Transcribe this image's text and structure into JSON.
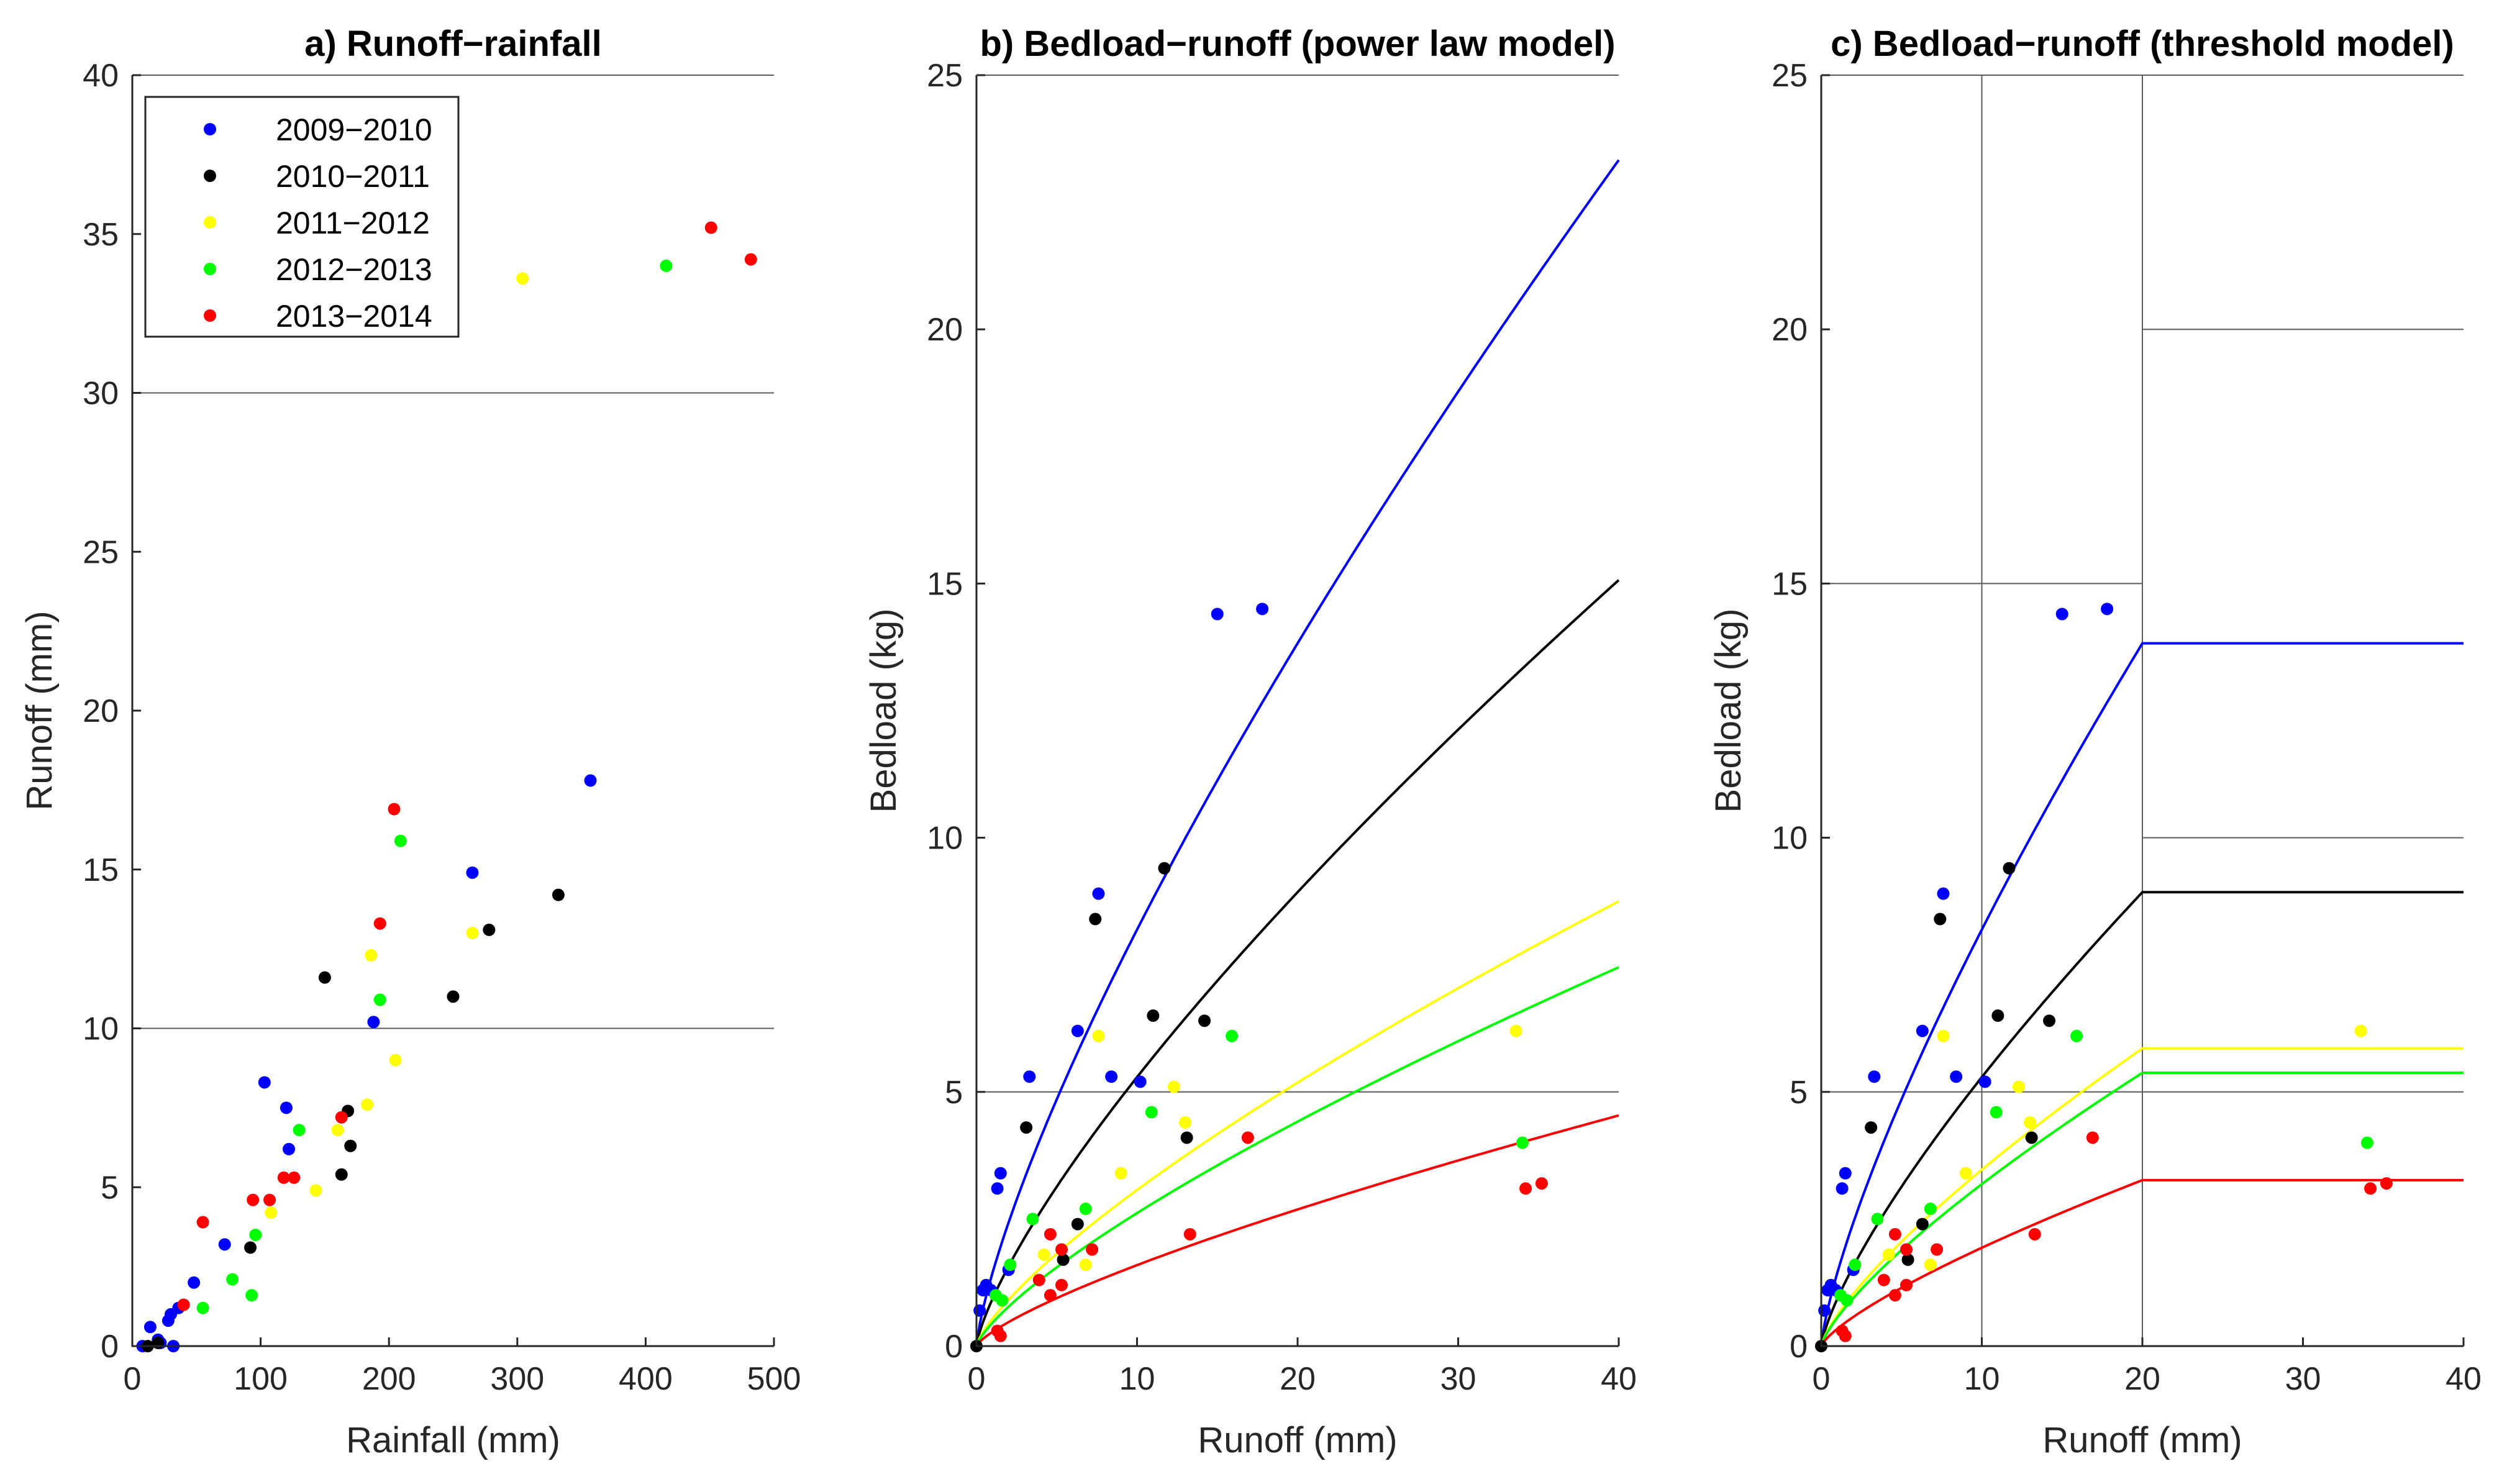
{
  "chart_data": [
    {
      "id": "a",
      "type": "scatter",
      "title": "a) Runoff−rainfall",
      "xlabel": "Rainfall (mm)",
      "ylabel": "Runoff (mm)",
      "xlim": [
        0,
        500
      ],
      "ylim": [
        0,
        40
      ],
      "xticks": [
        0,
        100,
        200,
        300,
        400,
        500
      ],
      "yticks": [
        0,
        5,
        10,
        15,
        20,
        25,
        30,
        35,
        40
      ],
      "hlines": [
        10,
        30,
        40
      ],
      "vlines": [],
      "segments": [],
      "legend": {
        "location": "top-left",
        "entries": [
          "2009−2010",
          "2010−2011",
          "2011−2012",
          "2012−2013",
          "2013−2014"
        ]
      },
      "series": [
        {
          "name": "2009−2010",
          "color": "#0000ff",
          "points": [
            [
              8,
              0
            ],
            [
              14,
              0.6
            ],
            [
              20,
              0.2
            ],
            [
              22,
              0.1
            ],
            [
              28,
              0.8
            ],
            [
              30,
              1.0
            ],
            [
              32,
              0
            ],
            [
              36,
              1.2
            ],
            [
              48,
              2.0
            ],
            [
              72,
              3.2
            ],
            [
              103,
              8.3
            ],
            [
              120,
              7.5
            ],
            [
              122,
              6.2
            ],
            [
              188,
              10.2
            ],
            [
              265,
              14.9
            ],
            [
              357,
              17.8
            ]
          ]
        },
        {
          "name": "2010−2011",
          "color": "#000000",
          "points": [
            [
              12,
              0
            ],
            [
              20,
              0.1
            ],
            [
              92,
              3.1
            ],
            [
              150,
              11.6
            ],
            [
              163,
              5.4
            ],
            [
              168,
              7.4
            ],
            [
              170,
              6.3
            ],
            [
              250,
              11.0
            ],
            [
              278,
              13.1
            ],
            [
              332,
              14.2
            ]
          ]
        },
        {
          "name": "2011−2012",
          "color": "#ffff00",
          "points": [
            [
              108,
              4.2
            ],
            [
              143,
              4.9
            ],
            [
              160,
              6.8
            ],
            [
              183,
              7.6
            ],
            [
              186,
              12.3
            ],
            [
              205,
              9.0
            ],
            [
              265,
              13.0
            ],
            [
              304,
              33.6
            ]
          ]
        },
        {
          "name": "2012−2013",
          "color": "#00ff00",
          "points": [
            [
              55,
              1.2
            ],
            [
              78,
              2.1
            ],
            [
              93,
              1.6
            ],
            [
              96,
              3.5
            ],
            [
              130,
              6.8
            ],
            [
              193,
              10.9
            ],
            [
              209,
              15.9
            ],
            [
              416,
              34.0
            ]
          ]
        },
        {
          "name": "2013−2014",
          "color": "#ff0000",
          "points": [
            [
              40,
              1.3
            ],
            [
              55,
              3.9
            ],
            [
              94,
              4.6
            ],
            [
              107,
              4.6
            ],
            [
              118,
              5.3
            ],
            [
              126,
              5.3
            ],
            [
              163,
              7.2
            ],
            [
              193,
              13.3
            ],
            [
              204,
              16.9
            ],
            [
              451,
              35.2
            ],
            [
              482,
              34.2
            ]
          ]
        }
      ]
    },
    {
      "id": "b",
      "type": "scatter",
      "title": "b) Bedload−runoff (power law model)",
      "xlabel": "Runoff (mm)",
      "ylabel": "Bedload (kg)",
      "xlim": [
        0,
        40
      ],
      "ylim": [
        0,
        25
      ],
      "xticks": [
        0,
        10,
        20,
        30,
        40
      ],
      "yticks": [
        0,
        5,
        10,
        15,
        20,
        25
      ],
      "hlines": [
        5,
        25
      ],
      "vlines": [],
      "segments": [],
      "fit_model": "power law",
      "series": [
        {
          "name": "2009−2010",
          "color": "#0000ff",
          "fit": {
            "a": 1.44,
            "b": 0.755
          },
          "points": [
            [
              0.2,
              0.7
            ],
            [
              0.4,
              1.1
            ],
            [
              0.6,
              1.2
            ],
            [
              0.9,
              1.1
            ],
            [
              1.3,
              3.1
            ],
            [
              1.5,
              3.4
            ],
            [
              2.0,
              1.5
            ],
            [
              3.3,
              5.3
            ],
            [
              6.3,
              6.2
            ],
            [
              7.6,
              8.9
            ],
            [
              8.4,
              5.3
            ],
            [
              10.2,
              5.2
            ],
            [
              15.0,
              14.4
            ],
            [
              17.8,
              14.5
            ]
          ]
        },
        {
          "name": "2010−2011",
          "color": "#000000",
          "fit": {
            "a": 0.93,
            "b": 0.755
          },
          "points": [
            [
              0.0,
              0.0
            ],
            [
              3.1,
              4.3
            ],
            [
              5.4,
              1.7
            ],
            [
              6.3,
              2.4
            ],
            [
              7.4,
              8.4
            ],
            [
              11.0,
              6.5
            ],
            [
              11.7,
              9.4
            ],
            [
              13.1,
              4.1
            ],
            [
              14.2,
              6.4
            ]
          ]
        },
        {
          "name": "2011−2012",
          "color": "#ffff00",
          "fit": {
            "a": 0.54,
            "b": 0.755
          },
          "points": [
            [
              4.2,
              1.8
            ],
            [
              6.8,
              1.6
            ],
            [
              7.6,
              6.1
            ],
            [
              9.0,
              3.4
            ],
            [
              12.3,
              5.1
            ],
            [
              13.0,
              4.4
            ],
            [
              33.6,
              6.2
            ]
          ]
        },
        {
          "name": "2012−2013",
          "color": "#00ff00",
          "fit": {
            "a": 0.46,
            "b": 0.755
          },
          "points": [
            [
              1.2,
              1.0
            ],
            [
              1.6,
              0.9
            ],
            [
              2.1,
              1.6
            ],
            [
              3.5,
              2.5
            ],
            [
              6.8,
              2.7
            ],
            [
              10.9,
              4.6
            ],
            [
              15.9,
              6.1
            ],
            [
              34.0,
              4.0
            ]
          ]
        },
        {
          "name": "2013−2014",
          "color": "#ff0000",
          "fit": {
            "a": 0.28,
            "b": 0.755
          },
          "points": [
            [
              1.3,
              0.3
            ],
            [
              1.5,
              0.2
            ],
            [
              3.9,
              1.3
            ],
            [
              4.6,
              1.0
            ],
            [
              4.6,
              2.2
            ],
            [
              5.3,
              1.2
            ],
            [
              5.3,
              1.9
            ],
            [
              7.2,
              1.9
            ],
            [
              13.3,
              2.2
            ],
            [
              16.9,
              4.1
            ],
            [
              34.2,
              3.1
            ],
            [
              35.2,
              3.2
            ]
          ]
        }
      ]
    },
    {
      "id": "c",
      "type": "scatter",
      "title": "c) Bedload−runoff (threshold model)",
      "xlabel": "Runoff (mm)",
      "ylabel": "Bedload (kg)",
      "xlim": [
        0,
        40
      ],
      "ylim": [
        0,
        25
      ],
      "xticks": [
        0,
        10,
        20,
        30,
        40
      ],
      "yticks": [
        0,
        5,
        10,
        15,
        20,
        25
      ],
      "hlines": [
        5,
        25
      ],
      "vlines": [
        10,
        20
      ],
      "segments": [
        [
          0,
          15,
          20,
          15
        ],
        [
          20,
          20,
          40,
          20
        ],
        [
          20,
          10,
          40,
          10
        ]
      ],
      "fit_model": "threshold",
      "threshold": 20,
      "series": [
        {
          "name": "2009−2010",
          "color": "#0000ff",
          "fit": {
            "a": 1.44,
            "b": 0.755
          },
          "points": [
            [
              0.2,
              0.7
            ],
            [
              0.4,
              1.1
            ],
            [
              0.6,
              1.2
            ],
            [
              0.9,
              1.1
            ],
            [
              1.3,
              3.1
            ],
            [
              1.5,
              3.4
            ],
            [
              2.0,
              1.5
            ],
            [
              3.3,
              5.3
            ],
            [
              6.3,
              6.2
            ],
            [
              7.6,
              8.9
            ],
            [
              8.4,
              5.3
            ],
            [
              10.2,
              5.2
            ],
            [
              15.0,
              14.4
            ],
            [
              17.8,
              14.5
            ]
          ]
        },
        {
          "name": "2010−2011",
          "color": "#000000",
          "fit": {
            "a": 0.93,
            "b": 0.755
          },
          "points": [
            [
              0.0,
              0.0
            ],
            [
              3.1,
              4.3
            ],
            [
              5.4,
              1.7
            ],
            [
              6.3,
              2.4
            ],
            [
              7.4,
              8.4
            ],
            [
              11.0,
              6.5
            ],
            [
              11.7,
              9.4
            ],
            [
              13.1,
              4.1
            ],
            [
              14.2,
              6.4
            ]
          ]
        },
        {
          "name": "2011−2012",
          "color": "#ffff00",
          "fit": {
            "a": 0.61,
            "b": 0.755
          },
          "points": [
            [
              4.2,
              1.8
            ],
            [
              6.8,
              1.6
            ],
            [
              7.6,
              6.1
            ],
            [
              9.0,
              3.4
            ],
            [
              12.3,
              5.1
            ],
            [
              13.0,
              4.4
            ],
            [
              33.6,
              6.2
            ]
          ]
        },
        {
          "name": "2012−2013",
          "color": "#00ff00",
          "fit": {
            "a": 0.56,
            "b": 0.755
          },
          "points": [
            [
              1.2,
              1.0
            ],
            [
              1.6,
              0.9
            ],
            [
              2.1,
              1.6
            ],
            [
              3.5,
              2.5
            ],
            [
              6.8,
              2.7
            ],
            [
              10.9,
              4.6
            ],
            [
              15.9,
              6.1
            ],
            [
              34.0,
              4.0
            ]
          ]
        },
        {
          "name": "2013−2014",
          "color": "#ff0000",
          "fit": {
            "a": 0.34,
            "b": 0.755
          },
          "points": [
            [
              1.3,
              0.3
            ],
            [
              1.5,
              0.2
            ],
            [
              3.9,
              1.3
            ],
            [
              4.6,
              1.0
            ],
            [
              4.6,
              2.2
            ],
            [
              5.3,
              1.2
            ],
            [
              5.3,
              1.9
            ],
            [
              7.2,
              1.9
            ],
            [
              13.3,
              2.2
            ],
            [
              16.9,
              4.1
            ],
            [
              34.2,
              3.1
            ],
            [
              35.2,
              3.2
            ]
          ]
        }
      ]
    }
  ]
}
